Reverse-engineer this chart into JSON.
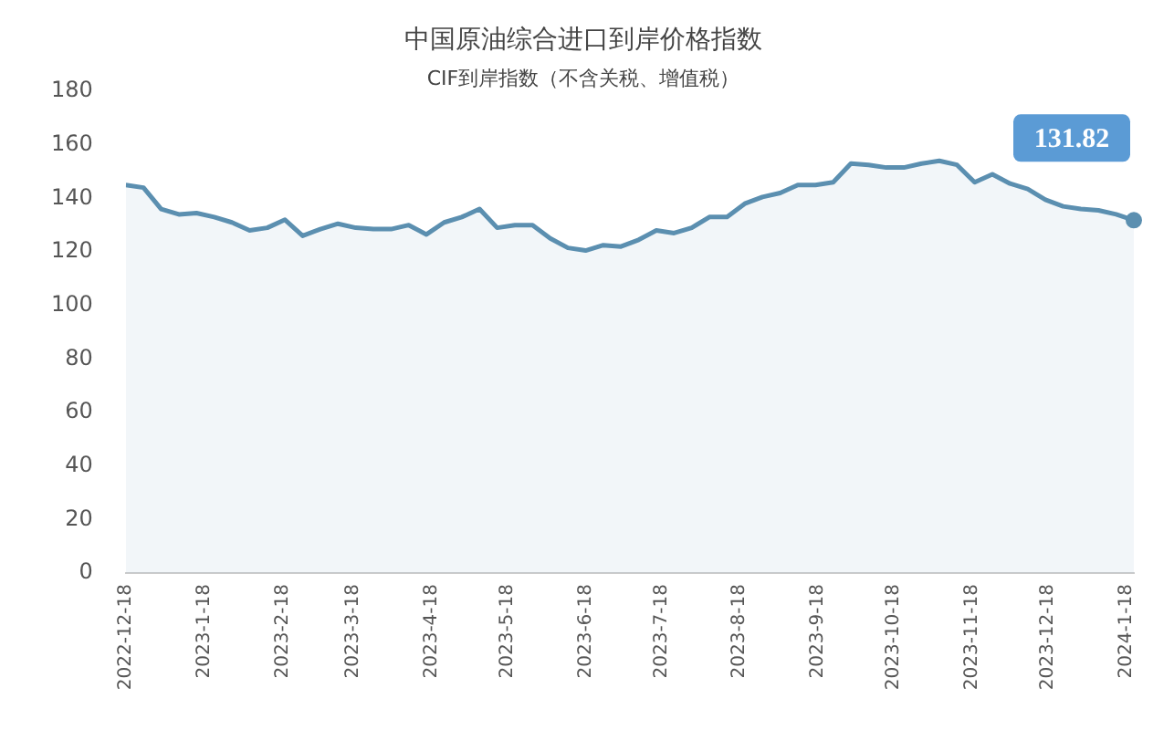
{
  "chart_data": {
    "type": "area",
    "title": "中国原油综合进口到岸价格指数",
    "subtitle": "CIF到岸指数（不含关税、增值税）",
    "x": [
      "2022-12-18",
      "2022-12-25",
      "2023-01-01",
      "2023-01-08",
      "2023-01-15",
      "2023-01-22",
      "2023-01-29",
      "2023-02-05",
      "2023-02-12",
      "2023-02-19",
      "2023-02-26",
      "2023-03-05",
      "2023-03-12",
      "2023-03-19",
      "2023-03-26",
      "2023-04-02",
      "2023-04-09",
      "2023-04-16",
      "2023-04-23",
      "2023-04-30",
      "2023-05-07",
      "2023-05-14",
      "2023-05-21",
      "2023-05-28",
      "2023-06-04",
      "2023-06-11",
      "2023-06-18",
      "2023-06-25",
      "2023-07-02",
      "2023-07-09",
      "2023-07-16",
      "2023-07-23",
      "2023-07-30",
      "2023-08-06",
      "2023-08-13",
      "2023-08-20",
      "2023-08-27",
      "2023-09-03",
      "2023-09-10",
      "2023-09-17",
      "2023-09-24",
      "2023-10-01",
      "2023-10-08",
      "2023-10-15",
      "2023-10-22",
      "2023-10-29",
      "2023-11-05",
      "2023-11-12",
      "2023-11-19",
      "2023-11-26",
      "2023-12-03",
      "2023-12-10",
      "2023-12-17",
      "2023-12-24",
      "2023-12-31",
      "2024-01-07",
      "2024-01-14",
      "2024-01-21"
    ],
    "series": [
      {
        "color": "#5b8fb0",
        "values": [
          145,
          144,
          136,
          134,
          134.5,
          133,
          131,
          128,
          129,
          132,
          126,
          128.5,
          130.5,
          129,
          128.5,
          128.5,
          130,
          126.5,
          131,
          133,
          136,
          129,
          130,
          130,
          125,
          121.5,
          120.5,
          122.5,
          122,
          124.5,
          128,
          127,
          129,
          133,
          133,
          138,
          140.5,
          142,
          145,
          145,
          146,
          153,
          152.5,
          151.5,
          151.5,
          153,
          154,
          152.5,
          146,
          149,
          145.5,
          143.5,
          139.5,
          137,
          136,
          135.5,
          134,
          131.82
        ]
      }
    ],
    "ylim": [
      0,
      180
    ],
    "yticks": [
      0,
      20,
      40,
      60,
      80,
      100,
      120,
      140,
      160,
      180
    ],
    "xlim": [
      "2022-12-18",
      "2024-01-21"
    ],
    "xticks": [
      {
        "value": "2022-12-18",
        "label": "2022-12-18"
      },
      {
        "value": "2023-01-18",
        "label": "2023-1-18"
      },
      {
        "value": "2023-02-18",
        "label": "2023-2-18"
      },
      {
        "value": "2023-03-18",
        "label": "2023-3-18"
      },
      {
        "value": "2023-04-18",
        "label": "2023-4-18"
      },
      {
        "value": "2023-05-18",
        "label": "2023-5-18"
      },
      {
        "value": "2023-06-18",
        "label": "2023-6-18"
      },
      {
        "value": "2023-07-18",
        "label": "2023-7-18"
      },
      {
        "value": "2023-08-18",
        "label": "2023-8-18"
      },
      {
        "value": "2023-09-18",
        "label": "2023-9-18"
      },
      {
        "value": "2023-10-18",
        "label": "2023-10-18"
      },
      {
        "value": "2023-11-18",
        "label": "2023-11-18"
      },
      {
        "value": "2023-12-18",
        "label": "2023-12-18"
      },
      {
        "value": "2024-01-18",
        "label": "2024-1-18"
      }
    ],
    "grid": false,
    "legend": false,
    "marker": "none",
    "line_style": "solid",
    "annotations": [
      {
        "text": "131.82",
        "x": "2024-01-21",
        "y": 131.82
      }
    ]
  }
}
